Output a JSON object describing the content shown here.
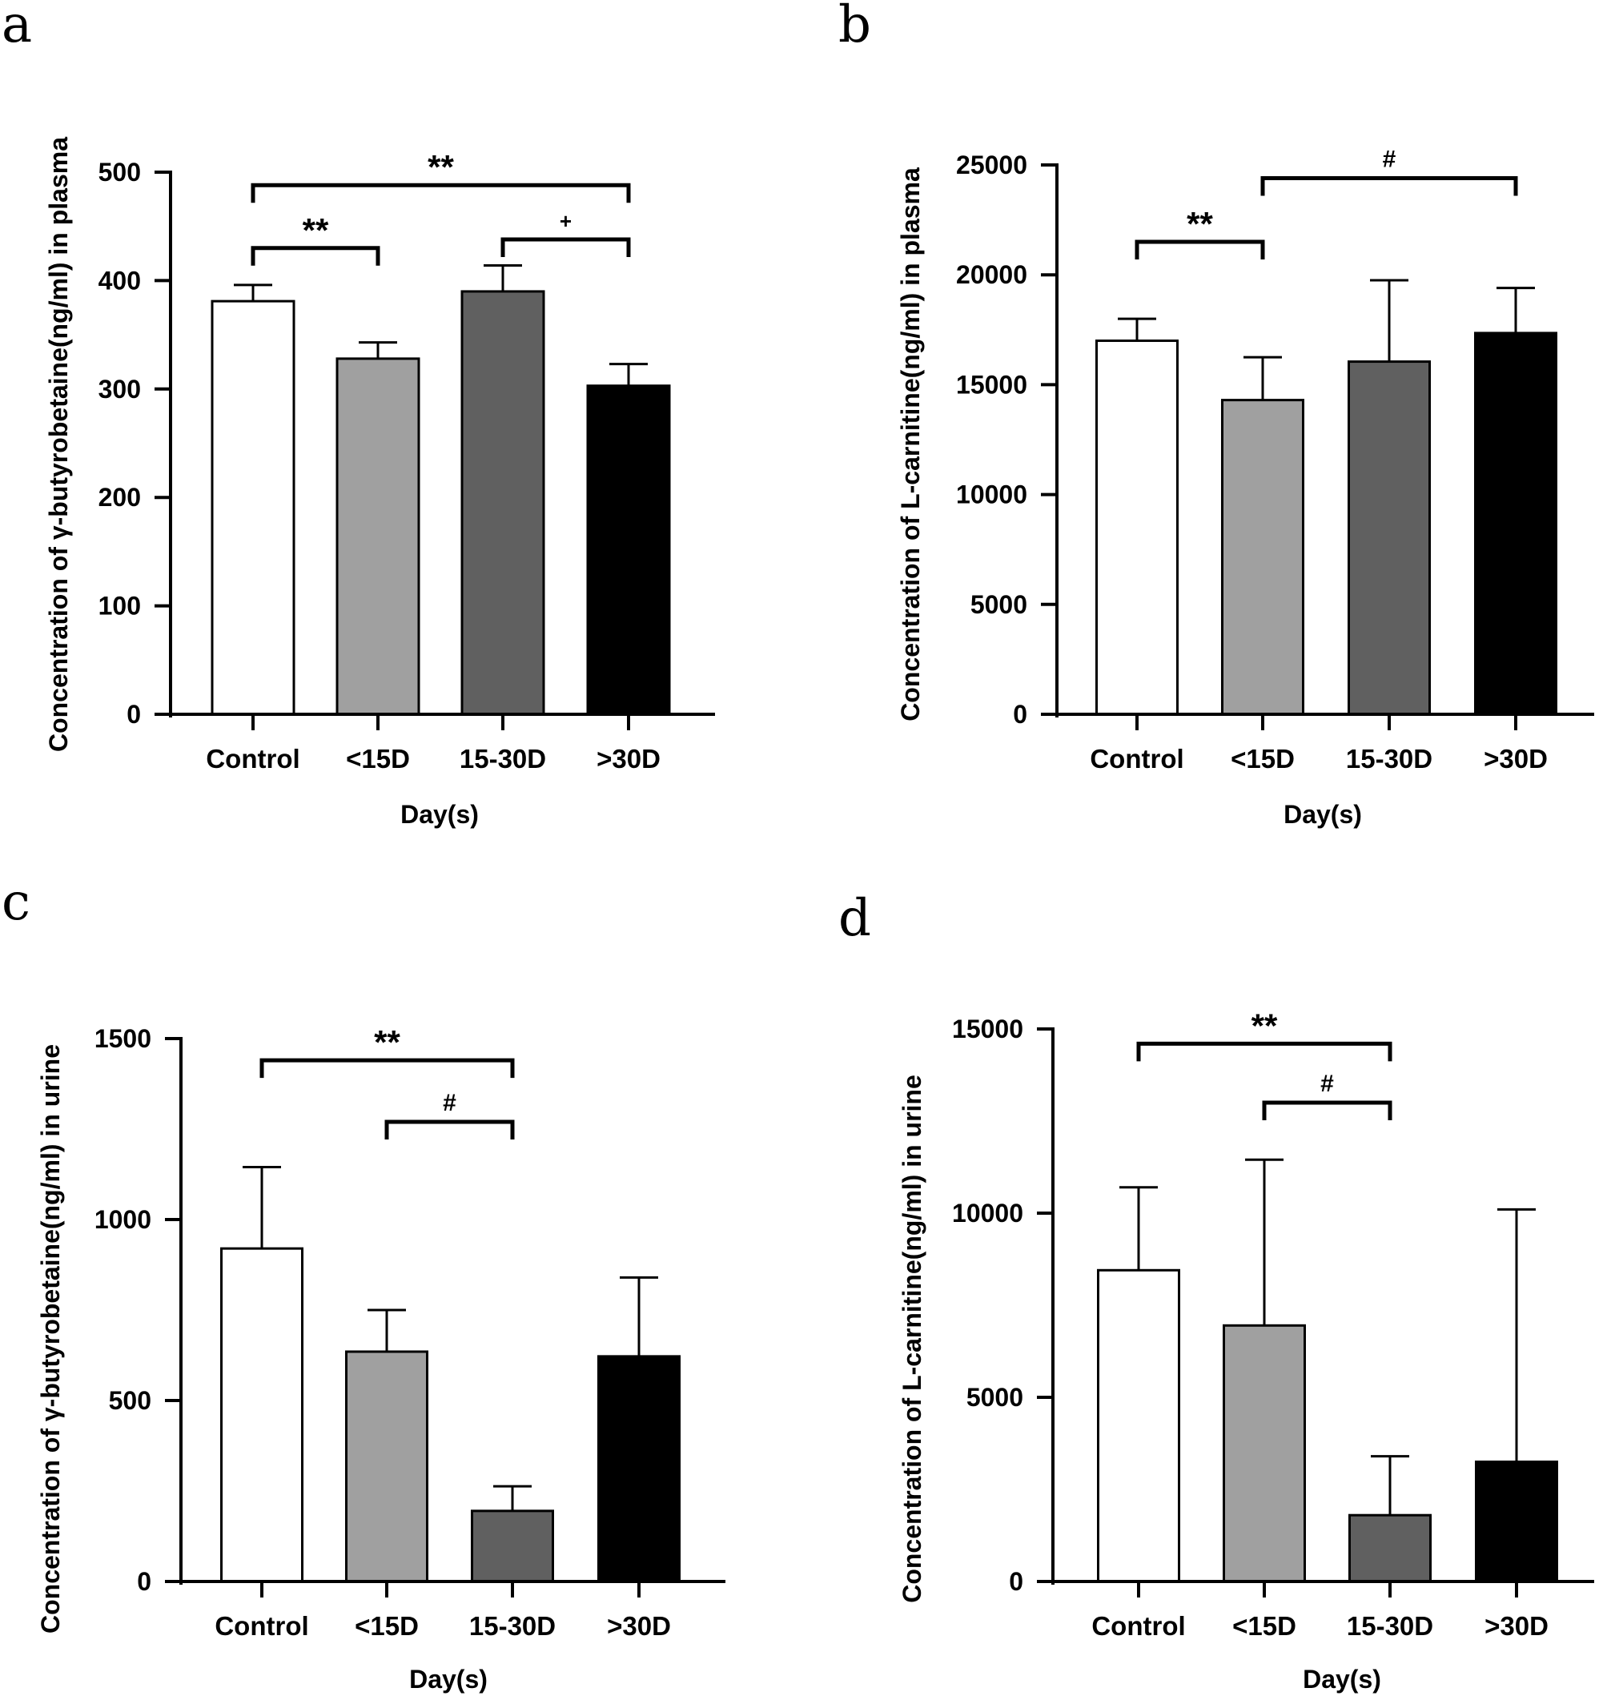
{
  "chart_data": [
    {
      "panel": "a",
      "type": "bar",
      "ylabel": "Concentration of γ-butyrobetaine(ng/ml) in plasma",
      "xlabel": "Day(s)",
      "categories": [
        "Control",
        "<15D",
        "15-30D",
        ">30D"
      ],
      "values": [
        381,
        328,
        390,
        303
      ],
      "errors": [
        15,
        15,
        24,
        20
      ],
      "ylim": [
        0,
        500
      ],
      "yticks": [
        0,
        100,
        200,
        300,
        400,
        500
      ],
      "colors": [
        "#ffffff",
        "#a0a0a0",
        "#606060",
        "#000000"
      ],
      "significance": [
        {
          "from": 0,
          "to": 3,
          "label": "**",
          "level": 488
        },
        {
          "from": 0,
          "to": 1,
          "label": "**",
          "level": 430
        },
        {
          "from": 2,
          "to": 3,
          "label": "+",
          "level": 438
        }
      ]
    },
    {
      "panel": "b",
      "type": "bar",
      "ylabel": "Concentration of L-carnitine(ng/ml) in plasma",
      "xlabel": "Day(s)",
      "categories": [
        "Control",
        "<15D",
        "15-30D",
        ">30D"
      ],
      "values": [
        17000,
        14300,
        16050,
        17350
      ],
      "errors": [
        1000,
        1950,
        3700,
        2050
      ],
      "ylim": [
        0,
        25000
      ],
      "yticks": [
        0,
        5000,
        10000,
        15000,
        20000,
        25000
      ],
      "colors": [
        "#ffffff",
        "#a0a0a0",
        "#606060",
        "#000000"
      ],
      "significance": [
        {
          "from": 0,
          "to": 1,
          "label": "**",
          "level": 21500
        },
        {
          "from": 1,
          "to": 3,
          "label": "#",
          "level": 24400
        }
      ]
    },
    {
      "panel": "c",
      "type": "bar",
      "ylabel": "Concentration of γ-butyrobetaine(ng/ml) in urine",
      "xlabel": "Day(s)",
      "categories": [
        "Control",
        "<15D",
        "15-30D",
        ">30D"
      ],
      "values": [
        920,
        635,
        195,
        622
      ],
      "errors": [
        225,
        115,
        68,
        218
      ],
      "ylim": [
        0,
        1500
      ],
      "yticks": [
        0,
        500,
        1000,
        1500
      ],
      "colors": [
        "#ffffff",
        "#a0a0a0",
        "#606060",
        "#000000"
      ],
      "significance": [
        {
          "from": 0,
          "to": 2,
          "label": "**",
          "level": 1440
        },
        {
          "from": 1,
          "to": 2,
          "label": "#",
          "level": 1270
        }
      ]
    },
    {
      "panel": "d",
      "type": "bar",
      "ylabel": "Concentration of L-carnitine(ng/ml) in urine",
      "xlabel": "Day(s)",
      "categories": [
        "Control",
        "<15D",
        "15-30D",
        ">30D"
      ],
      "values": [
        8450,
        6950,
        1800,
        3250
      ],
      "errors": [
        2250,
        4500,
        1600,
        6850
      ],
      "ylim": [
        0,
        15000
      ],
      "yticks": [
        0,
        5000,
        10000,
        15000
      ],
      "colors": [
        "#ffffff",
        "#a0a0a0",
        "#606060",
        "#000000"
      ],
      "significance": [
        {
          "from": 0,
          "to": 2,
          "label": "**",
          "level": 14600
        },
        {
          "from": 1,
          "to": 2,
          "label": "#",
          "level": 13000
        }
      ]
    }
  ]
}
